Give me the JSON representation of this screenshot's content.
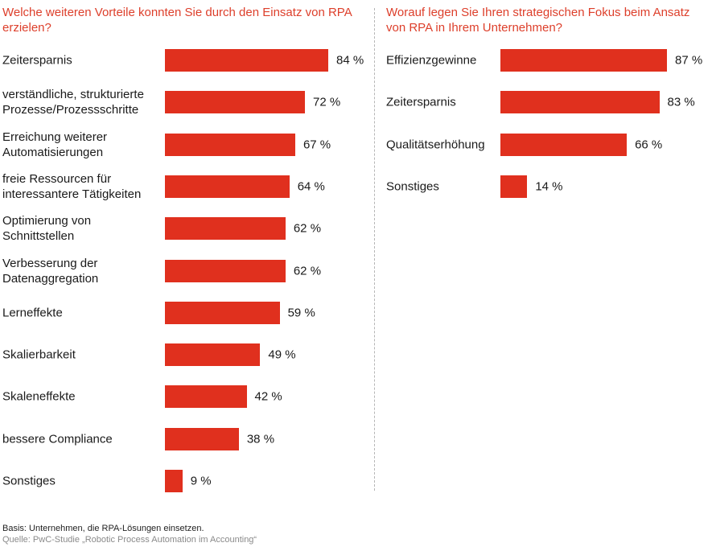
{
  "chart_data": [
    {
      "type": "bar",
      "orientation": "horizontal",
      "title": "Welche weiteren Vorteile konnten Sie durch den Einsatz von RPA erzielen?",
      "categories": [
        "Zeitersparnis",
        "verständliche, strukturierte Prozesse/Prozessschritte",
        "Erreichung weiterer Automatisierungen",
        "freie Ressourcen für interessantere Tätigkeiten",
        "Optimierung von Schnittstellen",
        "Verbesserung der Datenaggregation",
        "Lerneffekte",
        "Skalierbarkeit",
        "Skaleneffekte",
        "bessere Compliance",
        "Sonstiges"
      ],
      "values": [
        84,
        72,
        67,
        64,
        62,
        62,
        59,
        49,
        42,
        38,
        9
      ],
      "value_labels": [
        "84 %",
        "72 %",
        "67 %",
        "64 %",
        "62 %",
        "62 %",
        "59 %",
        "49 %",
        "42 %",
        "38 %",
        "9 %"
      ],
      "xlim": [
        0,
        100
      ],
      "color": "#e0301e"
    },
    {
      "type": "bar",
      "orientation": "horizontal",
      "title": "Worauf legen Sie Ihren strategischen Fokus beim Ansatz von RPA in Ihrem Unternehmen?",
      "categories": [
        "Effizienzgewinne",
        "Zeitersparnis",
        "Qualitätserhöhung",
        "Sonstiges"
      ],
      "values": [
        87,
        83,
        66,
        14
      ],
      "value_labels": [
        "87 %",
        "83 %",
        "66 %",
        "14 %"
      ],
      "xlim": [
        0,
        100
      ],
      "color": "#e0301e"
    }
  ],
  "footer": {
    "basis": "Basis: Unternehmen, die RPA-Lösungen einsetzen.",
    "source": "Quelle: PwC-Studie „Robotic Process Automation im Accounting“"
  },
  "colors": {
    "title": "#dd3f2b",
    "bar": "#e0301e",
    "source": "#8a8a8a"
  }
}
